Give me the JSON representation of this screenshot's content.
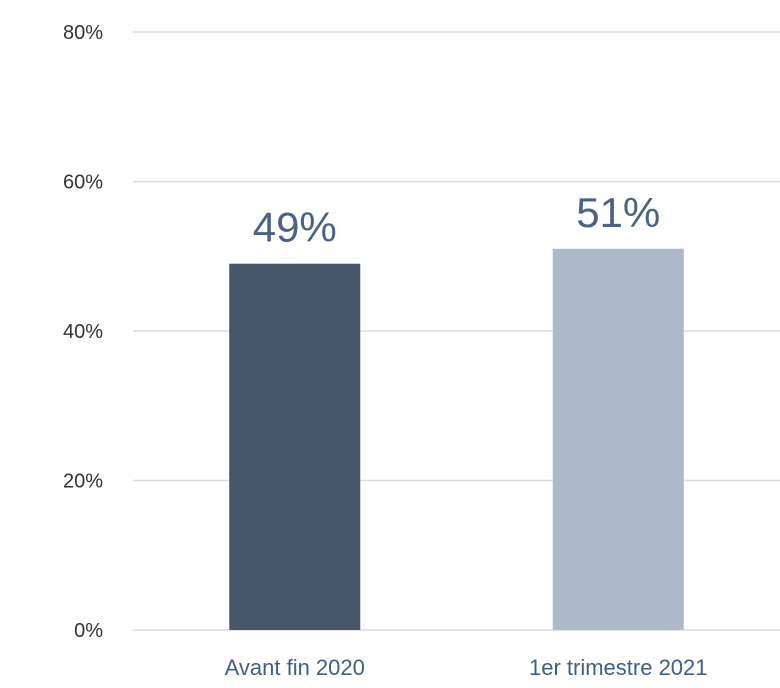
{
  "chart_data": {
    "type": "bar",
    "categories": [
      "Avant fin 2020",
      "1er trimestre 2021"
    ],
    "values": [
      49,
      51
    ],
    "data_labels": [
      "49%",
      "51%"
    ],
    "colors": [
      "#46566b",
      "#adb9c9"
    ],
    "ylim": [
      0,
      80
    ],
    "yticks": [
      0,
      20,
      40,
      60,
      80
    ],
    "ytick_labels": [
      "0%",
      "20%",
      "40%",
      "60%",
      "80%"
    ],
    "grid": true,
    "legend": "none",
    "title": "",
    "xlabel": "",
    "ylabel": ""
  }
}
